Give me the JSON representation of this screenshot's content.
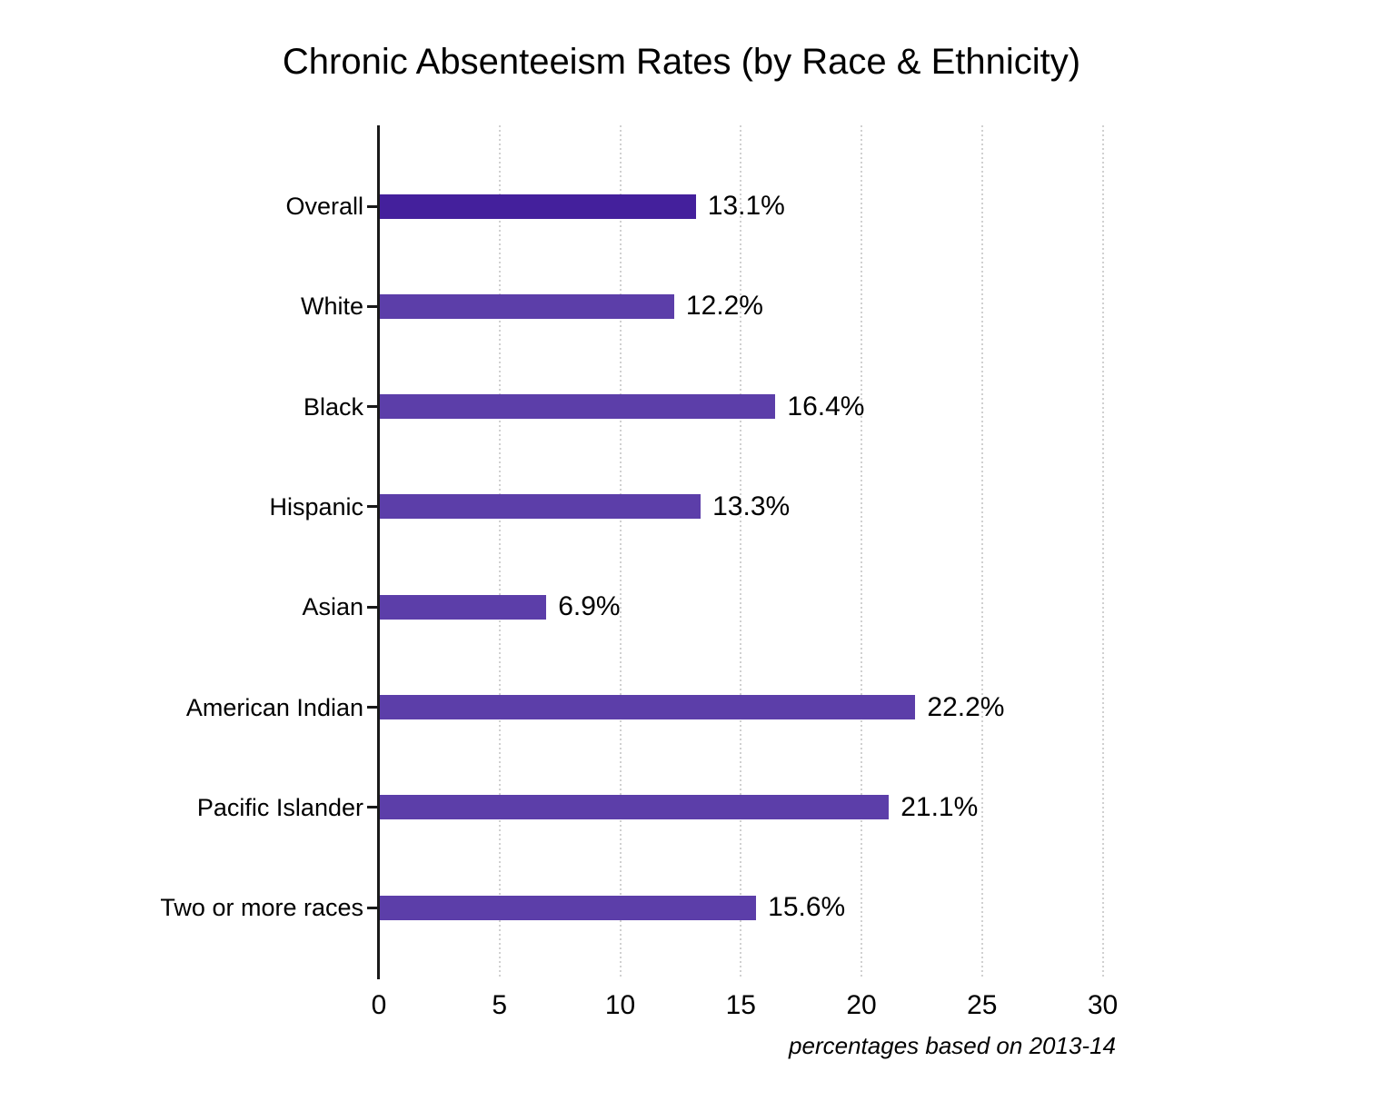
{
  "page": {
    "background": "#ffffff"
  },
  "chart_data": {
    "type": "bar",
    "orientation": "horizontal",
    "title": "Chronic Absenteeism Rates (by Race & Ethnicity)",
    "footnote": "percentages based on 2013-14",
    "categories": [
      "Overall",
      "White",
      "Black",
      "Hispanic",
      "Asian",
      "American Indian",
      "Pacific Islander",
      "Two or more races"
    ],
    "values": [
      13.1,
      12.2,
      16.4,
      13.3,
      6.9,
      22.2,
      21.1,
      15.6
    ],
    "value_labels": [
      "13.1%",
      "12.2%",
      "16.4%",
      "13.3%",
      "6.9%",
      "22.2%",
      "21.1%",
      "15.6%"
    ],
    "bar_colors": [
      "#44209C",
      "#5C3EA9",
      "#5C3EA9",
      "#5C3EA9",
      "#5C3EA9",
      "#5C3EA9",
      "#5C3EA9",
      "#5C3EA9"
    ],
    "xlim": [
      0,
      30
    ],
    "x_ticks": [
      0,
      5,
      10,
      15,
      20,
      25,
      30
    ],
    "grid": "vertical-dotted",
    "legend": "none",
    "colors": {
      "bar_overall": "#44209C",
      "bar_default": "#5C3EA9",
      "axis": "#1a1a1a",
      "gridline": "#d0d0d0",
      "text": "#000000"
    }
  }
}
